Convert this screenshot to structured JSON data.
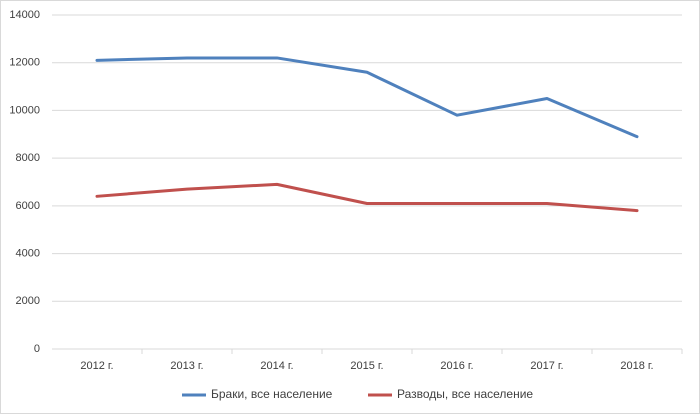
{
  "chart_data": {
    "type": "line",
    "categories": [
      "2012 г.",
      "2013 г.",
      "2014 г.",
      "2015 г.",
      "2016 г.",
      "2017 г.",
      "2018 г."
    ],
    "series": [
      {
        "name": "Браки, все население",
        "color": "#4f81bd",
        "values": [
          12100,
          12200,
          12200,
          11600,
          9800,
          10500,
          8900
        ]
      },
      {
        "name": "Разводы, все население",
        "color": "#c0504d",
        "values": [
          6400,
          6700,
          6900,
          6100,
          6100,
          6100,
          5800
        ]
      }
    ],
    "ylim": [
      0,
      14000
    ],
    "yticks": [
      0,
      2000,
      4000,
      6000,
      8000,
      10000,
      12000,
      14000
    ],
    "grid": true,
    "legend": "bottom"
  }
}
